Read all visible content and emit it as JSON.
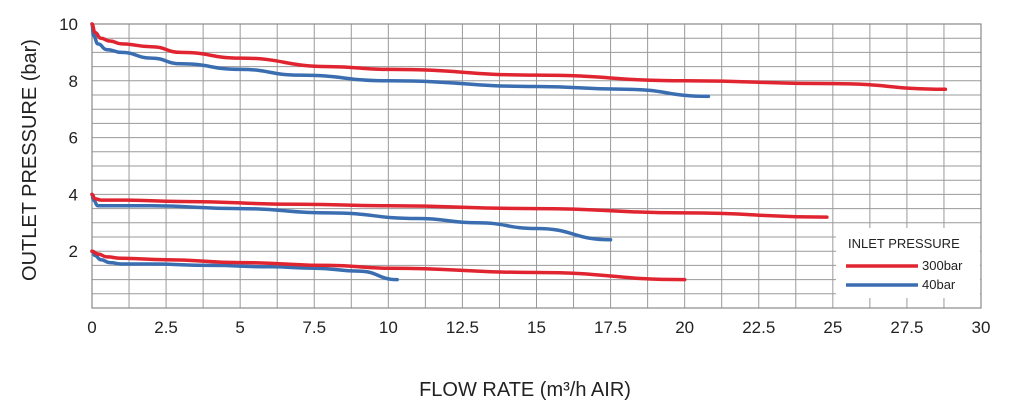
{
  "chart_data": {
    "type": "line",
    "xlabel": "FLOW RATE (m³/h AIR)",
    "ylabel": "OUTLET PRESSURE (bar)",
    "xlim": [
      0,
      30
    ],
    "ylim": [
      0,
      10
    ],
    "x_ticks": [
      "0",
      "2.5",
      "5",
      "7.5",
      "10",
      "12.5",
      "15",
      "17.5",
      "20",
      "22.5",
      "25",
      "27.5",
      "30"
    ],
    "y_ticks": [
      "2",
      "4",
      "6",
      "8",
      "10"
    ],
    "grid": true,
    "legend": {
      "title": "INLET PRESSURE",
      "position": "bottom-right",
      "entries": [
        {
          "label": "300bar",
          "color": "#e02530"
        },
        {
          "label": "40bar",
          "color": "#3a6eb0"
        }
      ]
    },
    "series": [
      {
        "name": "300bar",
        "color": "#e02530",
        "points": [
          [
            0,
            10
          ],
          [
            0.1,
            9.7
          ],
          [
            0.3,
            9.5
          ],
          [
            0.6,
            9.4
          ],
          [
            1,
            9.3
          ],
          [
            2,
            9.2
          ],
          [
            3,
            9.0
          ],
          [
            5,
            8.8
          ],
          [
            8,
            8.5
          ],
          [
            10,
            8.4
          ],
          [
            15,
            8.2
          ],
          [
            20,
            8.0
          ],
          [
            25,
            7.9
          ],
          [
            28.8,
            7.7
          ]
        ]
      },
      {
        "name": "40bar",
        "color": "#3a6eb0",
        "points": [
          [
            0,
            10
          ],
          [
            0.05,
            9.6
          ],
          [
            0.2,
            9.3
          ],
          [
            0.5,
            9.1
          ],
          [
            1,
            9.0
          ],
          [
            2,
            8.8
          ],
          [
            3,
            8.6
          ],
          [
            5,
            8.4
          ],
          [
            7,
            8.2
          ],
          [
            10,
            8.0
          ],
          [
            15,
            7.8
          ],
          [
            18,
            7.7
          ],
          [
            20.8,
            7.45
          ]
        ]
      },
      {
        "name": "300bar",
        "color": "#e02530",
        "points": [
          [
            0,
            4.0
          ],
          [
            0.1,
            3.85
          ],
          [
            0.3,
            3.8
          ],
          [
            1,
            3.8
          ],
          [
            3,
            3.75
          ],
          [
            7,
            3.65
          ],
          [
            10,
            3.6
          ],
          [
            15,
            3.5
          ],
          [
            20,
            3.35
          ],
          [
            24.8,
            3.2
          ]
        ]
      },
      {
        "name": "40bar",
        "color": "#3a6eb0",
        "points": [
          [
            0,
            4.0
          ],
          [
            0.05,
            3.8
          ],
          [
            0.2,
            3.6
          ],
          [
            0.5,
            3.6
          ],
          [
            2,
            3.6
          ],
          [
            5,
            3.5
          ],
          [
            8,
            3.35
          ],
          [
            11,
            3.15
          ],
          [
            13,
            3.0
          ],
          [
            15,
            2.8
          ],
          [
            17.5,
            2.4
          ]
        ]
      },
      {
        "name": "300bar",
        "color": "#e02530",
        "points": [
          [
            0,
            2.0
          ],
          [
            0.2,
            1.9
          ],
          [
            0.5,
            1.8
          ],
          [
            1,
            1.75
          ],
          [
            2.5,
            1.7
          ],
          [
            5,
            1.6
          ],
          [
            8,
            1.5
          ],
          [
            10,
            1.4
          ],
          [
            15,
            1.25
          ],
          [
            20,
            1.0
          ]
        ]
      },
      {
        "name": "40bar",
        "color": "#3a6eb0",
        "points": [
          [
            0,
            2.0
          ],
          [
            0.1,
            1.85
          ],
          [
            0.3,
            1.7
          ],
          [
            0.6,
            1.6
          ],
          [
            1,
            1.55
          ],
          [
            2,
            1.55
          ],
          [
            4,
            1.5
          ],
          [
            6,
            1.45
          ],
          [
            7.5,
            1.4
          ],
          [
            9,
            1.3
          ],
          [
            10.3,
            1.0
          ]
        ]
      }
    ]
  }
}
